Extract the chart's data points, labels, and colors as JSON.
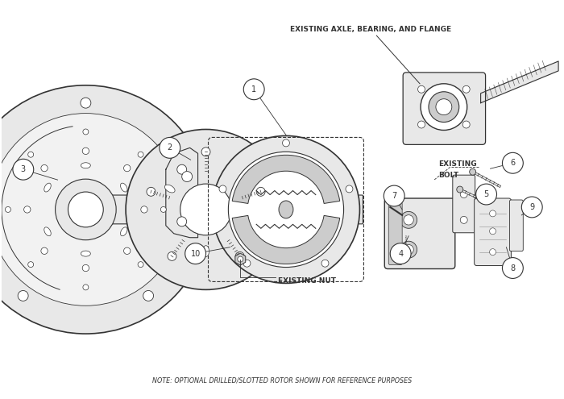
{
  "bg_color": "#ffffff",
  "line_color": "#333333",
  "fill_light": "#e8e8e8",
  "fill_mid": "#cccccc",
  "fill_dark": "#aaaaaa",
  "note_text": "NOTE: OPTIONAL DRILLED/SLOTTED ROTOR SHOWN FOR REFERENCE PURPOSES",
  "labels": {
    "axle": "EXISTING AXLE, BEARING, AND FLANGE",
    "nut": "EXISTING NUT",
    "bolt": "EXISTING\nBOLT"
  }
}
